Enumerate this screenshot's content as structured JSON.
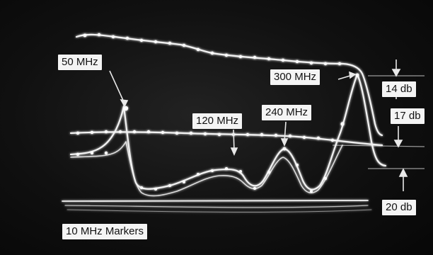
{
  "photo": {
    "description_colors": {
      "background": "#0d0d0d",
      "trace": "#f2f2f2",
      "label_bg": "#f4f4f4",
      "label_text": "#111111"
    },
    "labels": {
      "mhz_50": "50 MHz",
      "mhz_120": "120 MHz",
      "mhz_240": "240 MHz",
      "mhz_300": "300 MHz",
      "db_14": "14 db",
      "db_17": "17 db",
      "db_20": "20 db",
      "markers": "10 MHz Markers"
    }
  }
}
